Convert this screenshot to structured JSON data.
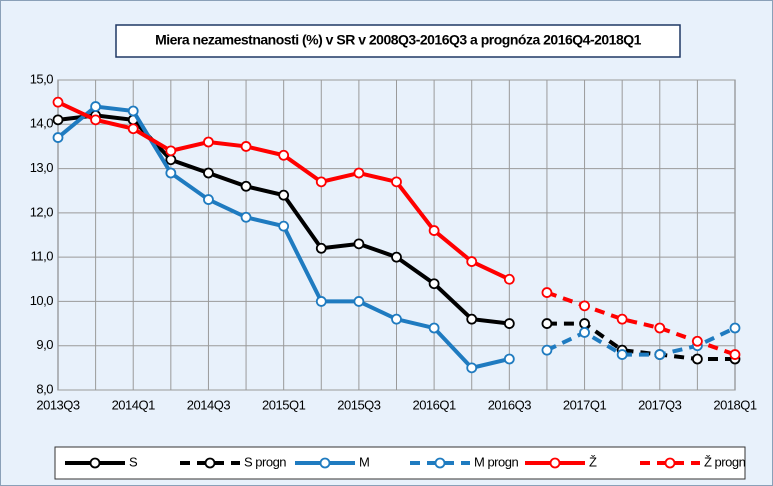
{
  "chart_data": {
    "type": "line",
    "title": "Miera nezamestnanosti  (%) v SR v 2008Q3-2016Q3 a prognóza 2016Q4-2018Q1",
    "categories": [
      "2013Q3",
      null,
      "2014Q1",
      null,
      "2014Q3",
      null,
      "2015Q1",
      null,
      "2015Q3",
      null,
      "2016Q1",
      null,
      "2016Q3",
      null,
      "2017Q1",
      null,
      "2017Q3",
      null,
      "2018Q1"
    ],
    "ylim": [
      8,
      15
    ],
    "yticks": [
      {
        "value": 8,
        "label": "8,0"
      },
      {
        "value": 9,
        "label": "9,0"
      },
      {
        "value": 10,
        "label": "10,0"
      },
      {
        "value": 11,
        "label": "11,0"
      },
      {
        "value": 12,
        "label": "12,0"
      },
      {
        "value": 13,
        "label": "13,0"
      },
      {
        "value": 14,
        "label": "14,0"
      },
      {
        "value": 15,
        "label": "15,0"
      }
    ],
    "grid": true,
    "legend": "bottom",
    "series": [
      {
        "name": "S",
        "color": "#000000",
        "dashed": false,
        "values": [
          14.1,
          14.2,
          14.1,
          13.2,
          12.9,
          12.6,
          12.4,
          11.2,
          11.3,
          11.0,
          10.4,
          9.6,
          9.5,
          null,
          null,
          null,
          null,
          null,
          null
        ]
      },
      {
        "name": "S progn",
        "color": "#000000",
        "dashed": true,
        "values": [
          null,
          null,
          null,
          null,
          null,
          null,
          null,
          null,
          null,
          null,
          null,
          null,
          null,
          9.5,
          9.5,
          8.9,
          8.8,
          8.7,
          8.7
        ]
      },
      {
        "name": "M",
        "color": "#1f7bc0",
        "dashed": false,
        "values": [
          13.7,
          14.4,
          14.3,
          12.9,
          12.3,
          11.9,
          11.7,
          10.0,
          10.0,
          9.6,
          9.4,
          8.5,
          8.7,
          null,
          null,
          null,
          null,
          null,
          null
        ]
      },
      {
        "name": "M progn",
        "color": "#1f7bc0",
        "dashed": true,
        "values": [
          null,
          null,
          null,
          null,
          null,
          null,
          null,
          null,
          null,
          null,
          null,
          null,
          null,
          8.9,
          9.3,
          8.8,
          8.8,
          9.0,
          9.4
        ]
      },
      {
        "name": "Ž",
        "color": "#ff0000",
        "dashed": false,
        "values": [
          14.5,
          14.1,
          13.9,
          13.4,
          13.6,
          13.5,
          13.3,
          12.7,
          12.9,
          12.7,
          11.6,
          10.9,
          10.5,
          null,
          null,
          null,
          null,
          null,
          null
        ]
      },
      {
        "name": "Ž progn",
        "color": "#ff0000",
        "dashed": true,
        "values": [
          null,
          null,
          null,
          null,
          null,
          null,
          null,
          null,
          null,
          null,
          null,
          null,
          null,
          10.2,
          9.9,
          9.6,
          9.4,
          9.1,
          8.8
        ]
      }
    ]
  }
}
